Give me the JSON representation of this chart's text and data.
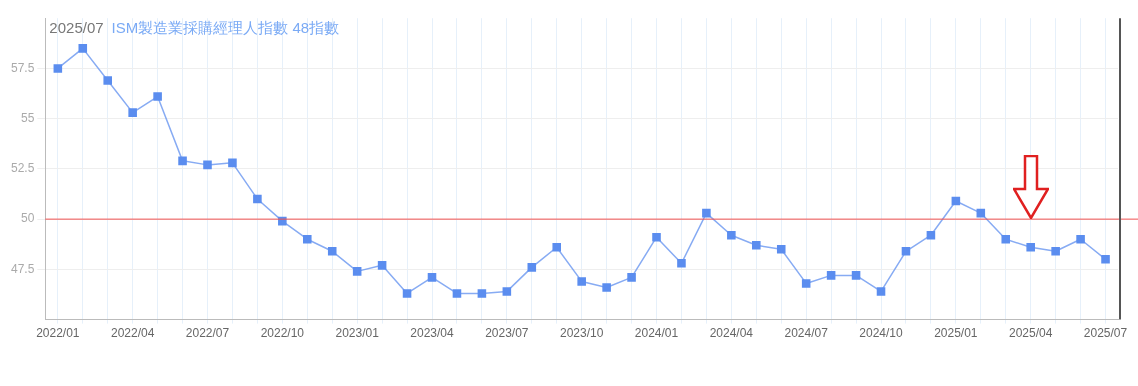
{
  "chart_data": {
    "type": "line",
    "title": "2025/07",
    "subtitle": "ISM製造業採購經理人指數 48指數",
    "categories": [
      "2022/01",
      null,
      null,
      "2022/04",
      null,
      null,
      "2022/07",
      null,
      null,
      "2022/10",
      null,
      null,
      "2023/01",
      null,
      null,
      "2023/04",
      null,
      null,
      "2023/07",
      null,
      null,
      "2023/10",
      null,
      null,
      "2024/01",
      null,
      null,
      "2024/04",
      null,
      null,
      "2024/07",
      null,
      null,
      "2024/10",
      null,
      null,
      "2025/01",
      null,
      null,
      "2025/04",
      null,
      null,
      "2025/07"
    ],
    "series": [
      {
        "color": "#5b8def",
        "values": [
          57.5,
          58.5,
          56.9,
          55.3,
          56.1,
          52.9,
          52.7,
          52.8,
          51.0,
          49.9,
          49.0,
          48.4,
          47.4,
          47.7,
          46.3,
          47.1,
          46.3,
          46.3,
          46.4,
          47.6,
          48.6,
          46.9,
          46.6,
          47.1,
          49.1,
          47.8,
          50.3,
          49.2,
          48.7,
          48.5,
          46.8,
          47.2,
          47.2,
          46.4,
          48.4,
          49.2,
          50.9,
          50.3,
          49.0,
          48.6,
          48.4,
          49.0,
          48.0
        ]
      }
    ],
    "ylim": [
      45,
      60
    ],
    "yticks": [
      47.5,
      50,
      52.5,
      55,
      57.5
    ],
    "ref_lines": [
      {
        "axis": "y",
        "value": 50,
        "color": "#f05050"
      }
    ],
    "grid": true,
    "legend": false,
    "marker": "square",
    "line_style": "solid"
  }
}
